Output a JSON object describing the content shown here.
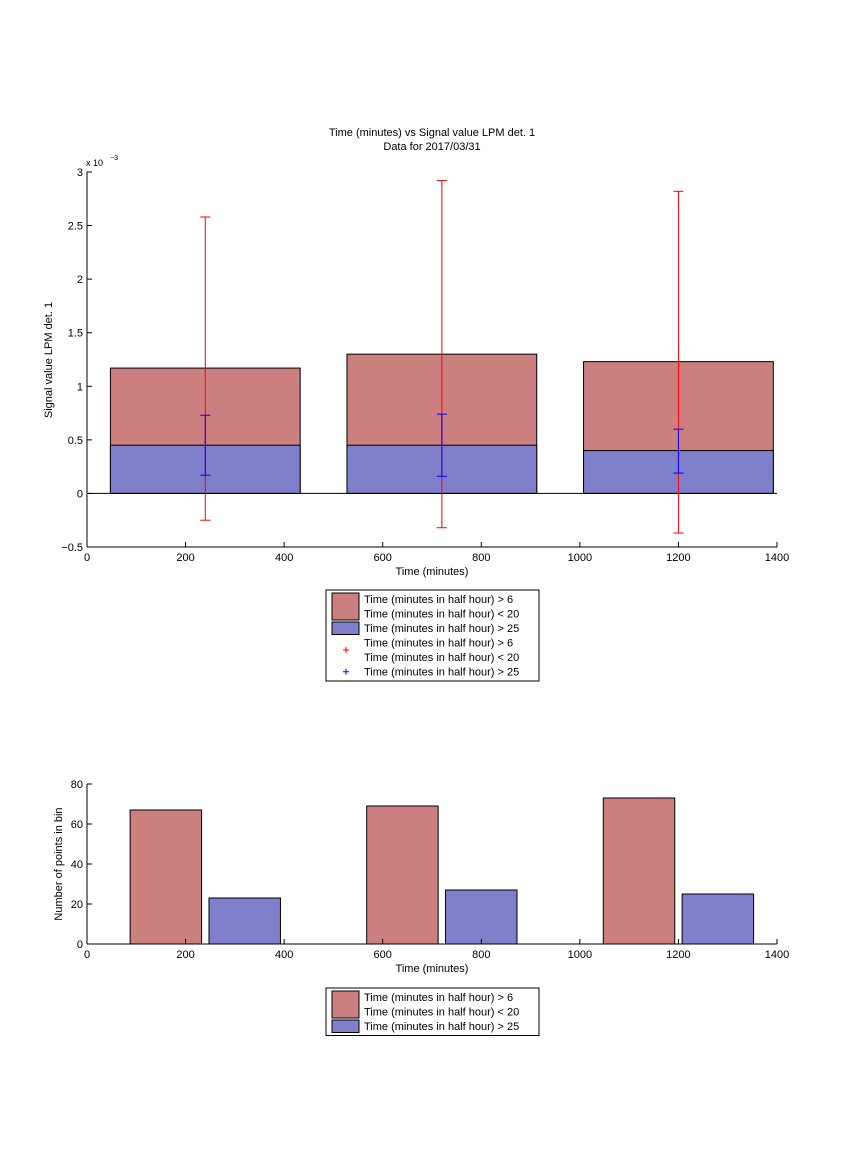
{
  "colors": {
    "bar_red": "#cc7f7f",
    "bar_blue": "#7f7fcc",
    "err_red": "#ff0000",
    "err_blue": "#0000ff",
    "axis": "#000000"
  },
  "chart_data": [
    {
      "type": "bar",
      "title": "Time (minutes) vs Signal value LPM det. 1",
      "subtitle": "Data for 2017/03/31",
      "xlabel": "Time (minutes)",
      "ylabel": "Signal value LPM det. 1",
      "exponent_label": "x 10",
      "exponent_power": "−3",
      "xlim": [
        0,
        1400
      ],
      "ylim": [
        -0.0005,
        0.003
      ],
      "xticks": [
        0,
        200,
        400,
        600,
        800,
        1000,
        1200,
        1400
      ],
      "yticks": [
        -0.0005,
        0,
        0.0005,
        0.001,
        0.0015,
        0.002,
        0.0025,
        0.003
      ],
      "ytick_labels": [
        "−0.5",
        "0",
        "0.5",
        "1",
        "1.5",
        "2",
        "2.5",
        "3"
      ],
      "stacked": true,
      "bars": [
        {
          "x": 240,
          "width": 385,
          "red": 0.00117,
          "blue": 0.00045
        },
        {
          "x": 720,
          "width": 385,
          "red": 0.0013,
          "blue": 0.00045
        },
        {
          "x": 1200,
          "width": 385,
          "red": 0.00123,
          "blue": 0.0004
        }
      ],
      "errorbars": [
        {
          "series": "red",
          "x": 240,
          "low": -0.00025,
          "high": 0.00258
        },
        {
          "series": "red",
          "x": 720,
          "low": -0.00032,
          "high": 0.00292
        },
        {
          "series": "red",
          "x": 1200,
          "low": -0.00037,
          "high": 0.00282
        },
        {
          "series": "blue",
          "x": 240,
          "low": 0.00017,
          "high": 0.00073
        },
        {
          "series": "blue",
          "x": 720,
          "low": 0.00016,
          "high": 0.00074
        },
        {
          "series": "blue",
          "x": 1200,
          "low": 0.00019,
          "high": 0.0006
        }
      ],
      "legend": [
        {
          "kind": "patch",
          "color": "red",
          "lines": [
            "Time (minutes in half hour) > 6",
            "Time (minutes in half hour) < 20"
          ]
        },
        {
          "kind": "patch",
          "color": "blue",
          "lines": [
            "Time (minutes in half hour) > 25"
          ]
        },
        {
          "kind": "marker",
          "color": "red",
          "lines": [
            "Time (minutes in half hour) > 6",
            "Time (minutes in half hour) < 20"
          ]
        },
        {
          "kind": "marker",
          "color": "blue",
          "lines": [
            "Time (minutes in half hour) > 25"
          ]
        }
      ],
      "legend_position": "below"
    },
    {
      "type": "bar",
      "xlabel": "Time (minutes)",
      "ylabel": "Number of points in bin",
      "xlim": [
        0,
        1400
      ],
      "ylim": [
        0,
        80
      ],
      "xticks": [
        0,
        200,
        400,
        600,
        800,
        1000,
        1200,
        1400
      ],
      "yticks": [
        0,
        20,
        40,
        60,
        80
      ],
      "bars": [
        {
          "series": "red",
          "x": 160,
          "width": 145,
          "value": 67
        },
        {
          "series": "blue",
          "x": 320,
          "width": 145,
          "value": 23
        },
        {
          "series": "red",
          "x": 640,
          "width": 145,
          "value": 69
        },
        {
          "series": "blue",
          "x": 800,
          "width": 145,
          "value": 27
        },
        {
          "series": "red",
          "x": 1120,
          "width": 145,
          "value": 73
        },
        {
          "series": "blue",
          "x": 1280,
          "width": 145,
          "value": 25
        }
      ],
      "legend": [
        {
          "kind": "patch",
          "color": "red",
          "lines": [
            "Time (minutes in half hour) > 6",
            "Time (minutes in half hour) < 20"
          ]
        },
        {
          "kind": "patch",
          "color": "blue",
          "lines": [
            "Time (minutes in half hour) > 25"
          ]
        }
      ],
      "legend_position": "below"
    }
  ]
}
